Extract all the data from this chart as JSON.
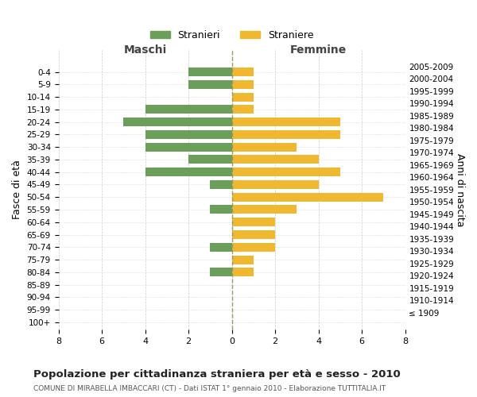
{
  "age_groups": [
    "100+",
    "95-99",
    "90-94",
    "85-89",
    "80-84",
    "75-79",
    "70-74",
    "65-69",
    "60-64",
    "55-59",
    "50-54",
    "45-49",
    "40-44",
    "35-39",
    "30-34",
    "25-29",
    "20-24",
    "15-19",
    "10-14",
    "5-9",
    "0-4"
  ],
  "birth_years": [
    "≤ 1909",
    "1910-1914",
    "1915-1919",
    "1920-1924",
    "1925-1929",
    "1930-1934",
    "1935-1939",
    "1940-1944",
    "1945-1949",
    "1950-1954",
    "1955-1959",
    "1960-1964",
    "1965-1969",
    "1970-1974",
    "1975-1979",
    "1980-1984",
    "1985-1989",
    "1990-1994",
    "1995-1999",
    "2000-2004",
    "2005-2009"
  ],
  "maschi": [
    0,
    0,
    0,
    0,
    1,
    0,
    1,
    0,
    0,
    1,
    0,
    1,
    4,
    2,
    4,
    4,
    5,
    4,
    0,
    2,
    2
  ],
  "femmine": [
    0,
    0,
    0,
    0,
    1,
    1,
    2,
    2,
    2,
    3,
    7,
    4,
    5,
    4,
    3,
    5,
    5,
    1,
    1,
    1,
    1
  ],
  "maschi_color": "#6a9e5a",
  "femmine_color": "#f0b830",
  "bg_color": "#ffffff",
  "grid_color": "#cccccc",
  "zero_line_color": "#999966",
  "title": "Popolazione per cittadinanza straniera per età e sesso - 2010",
  "subtitle": "COMUNE DI MIRABELLA IMBACCARI (CT) - Dati ISTAT 1° gennaio 2010 - Elaborazione TUTTITALIA.IT",
  "ylabel_left": "Fasce di età",
  "ylabel_right": "Anni di nascita",
  "xlabel_left": "Maschi",
  "xlabel_right": "Femmine",
  "legend_stranieri": "Stranieri",
  "legend_straniere": "Straniere",
  "xlim": 8
}
